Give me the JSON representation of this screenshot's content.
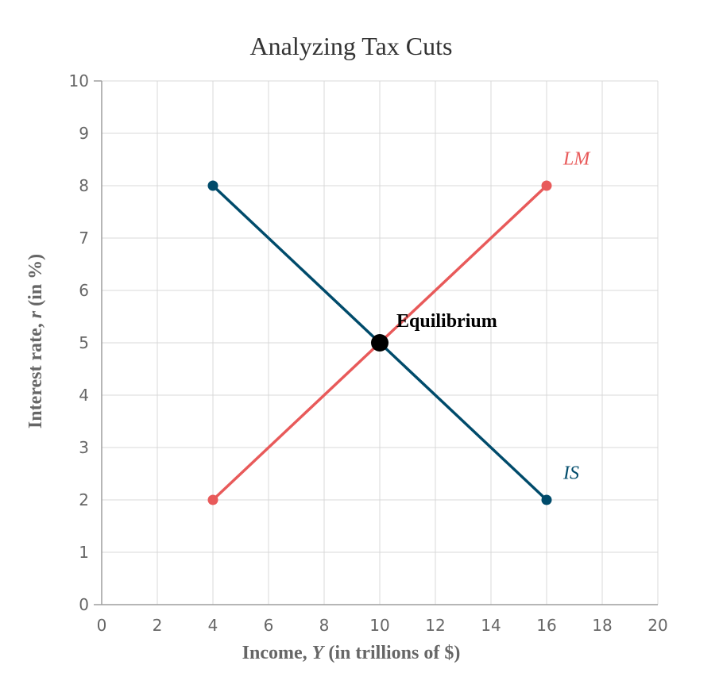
{
  "chart_data": {
    "type": "line",
    "title": "Analyzing Tax Cuts",
    "xlabel": {
      "prefix": "Income, ",
      "var": "Y",
      "suffix": " (in trillions of $)"
    },
    "ylabel": {
      "prefix": "Interest rate, ",
      "var": "r",
      "suffix": " (in %)"
    },
    "xlim": [
      0,
      20
    ],
    "ylim": [
      0,
      10
    ],
    "x_ticks": [
      0,
      2,
      4,
      6,
      8,
      10,
      12,
      14,
      16,
      18,
      20
    ],
    "y_ticks": [
      0,
      1,
      2,
      3,
      4,
      5,
      6,
      7,
      8,
      9,
      10
    ],
    "grid": true,
    "series": [
      {
        "name": "IS",
        "color": "#004b6b",
        "points": [
          [
            4,
            8
          ],
          [
            10,
            5
          ],
          [
            16,
            2
          ]
        ],
        "label_at": [
          16.6,
          2.4
        ]
      },
      {
        "name": "LM",
        "color": "#e85a5a",
        "points": [
          [
            4,
            2
          ],
          [
            10,
            5
          ],
          [
            16,
            8
          ]
        ],
        "label_at": [
          16.6,
          8.4
        ]
      }
    ],
    "annotations": [
      {
        "label": "Equilibrium",
        "x": 10,
        "y": 5,
        "color": "#000000"
      }
    ]
  }
}
